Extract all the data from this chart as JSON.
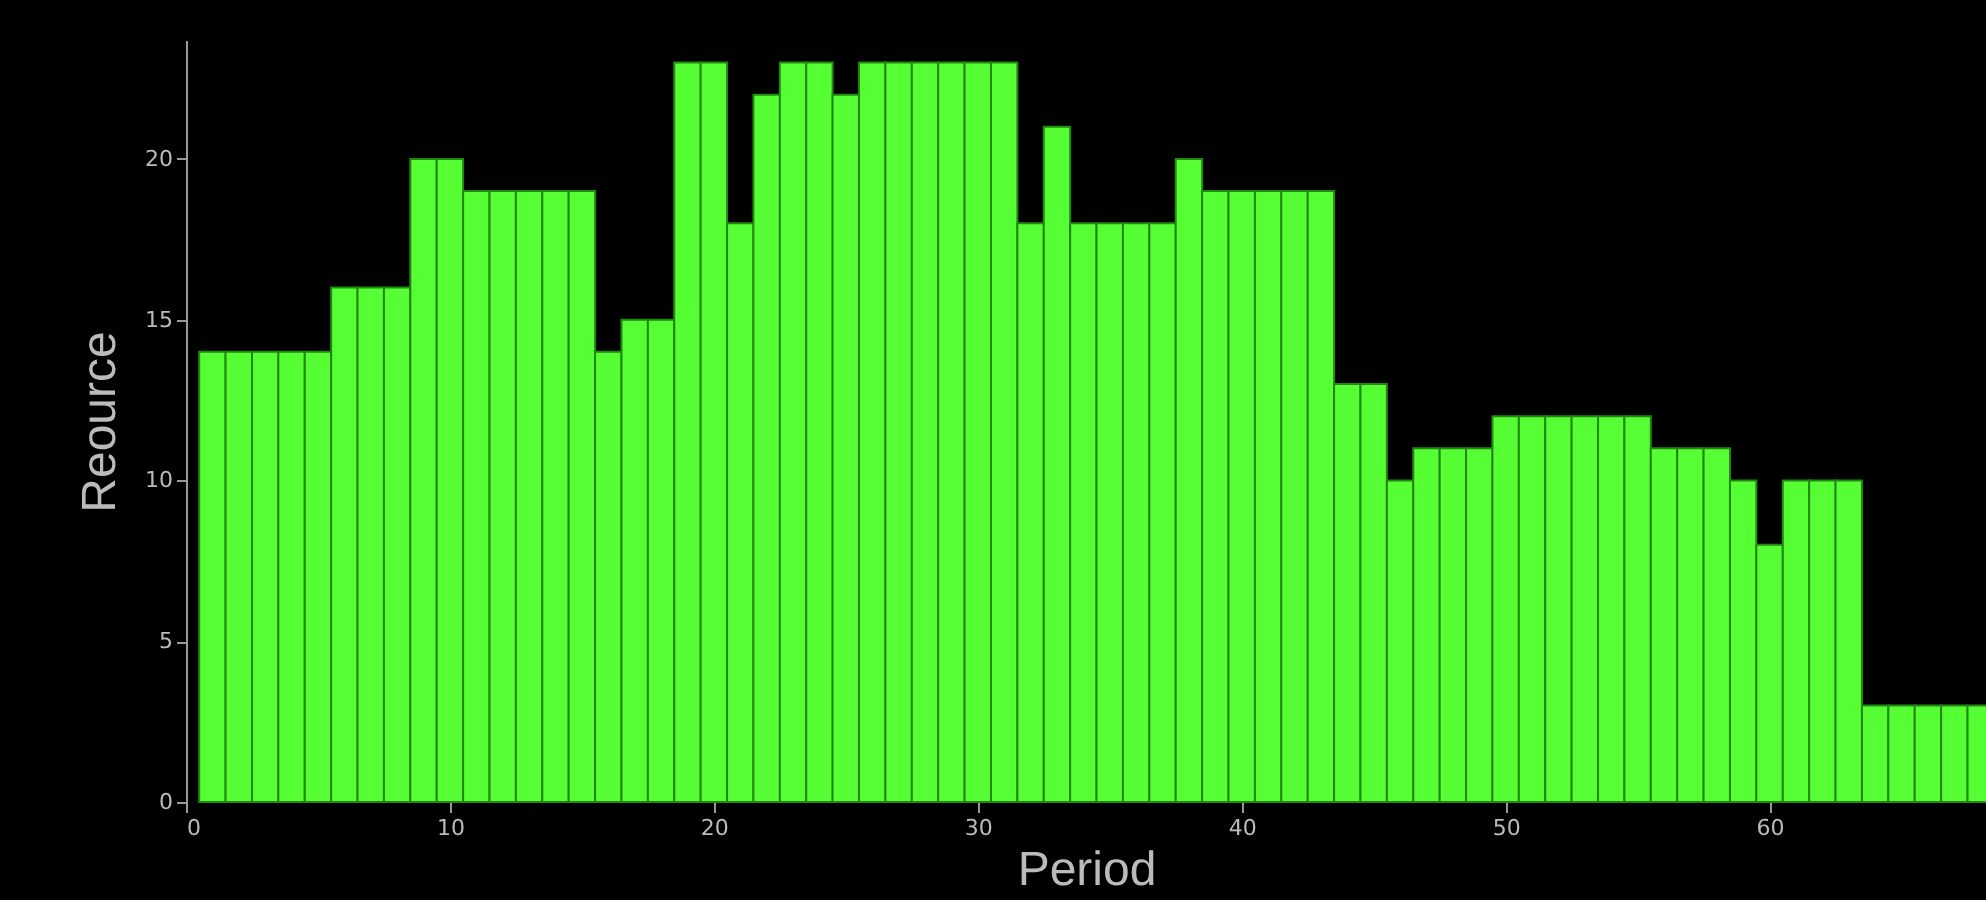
{
  "chart_data": {
    "type": "histogram",
    "xlabel": "Period",
    "ylabel": "Reource",
    "bins": [
      0.5,
      1.5,
      2.5,
      3.5,
      4.5,
      5.5,
      6.5,
      7.5,
      8.5,
      9.5,
      10.5,
      11.5,
      12.5,
      13.5,
      14.5,
      15.5,
      16.5,
      17.5,
      18.5,
      19.5,
      20.5,
      21.5,
      22.5,
      23.5,
      24.5,
      25.5,
      26.5,
      27.5,
      28.5,
      29.5,
      30.5,
      31.5,
      32.5,
      33.5,
      34.5,
      35.5,
      36.5,
      37.5,
      38.5,
      39.5,
      40.5,
      41.5,
      42.5,
      43.5,
      44.5,
      45.5,
      46.5,
      47.5,
      48.5,
      49.5,
      50.5,
      51.5,
      52.5,
      53.5,
      54.5,
      55.5,
      56.5,
      57.5,
      58.5,
      59.5,
      60.5,
      61.5,
      62.5,
      63.5,
      64.5,
      65.5,
      66.5,
      67.5,
      68.5
    ],
    "values": [
      14,
      14,
      14,
      14,
      14,
      16,
      16,
      16,
      20,
      20,
      19,
      19,
      19,
      19,
      19,
      14,
      15,
      15,
      23,
      23,
      18,
      22,
      23,
      23,
      22,
      23,
      23,
      23,
      23,
      23,
      23,
      18,
      21,
      18,
      18,
      18,
      18,
      20,
      19,
      19,
      19,
      19,
      19,
      13,
      13,
      10,
      11,
      11,
      11,
      12,
      12,
      12,
      12,
      12,
      12,
      11,
      11,
      11,
      10,
      8,
      10,
      10,
      10,
      3,
      3,
      3,
      3,
      3
    ],
    "color": "#55ff33",
    "xlim": [
      0,
      68.2
    ],
    "xticks": [
      0,
      10,
      20,
      30,
      40,
      50,
      60
    ],
    "ylim": [
      0,
      23.7
    ],
    "yticks": [
      0,
      5,
      10,
      15,
      20
    ],
    "grid": false
  }
}
